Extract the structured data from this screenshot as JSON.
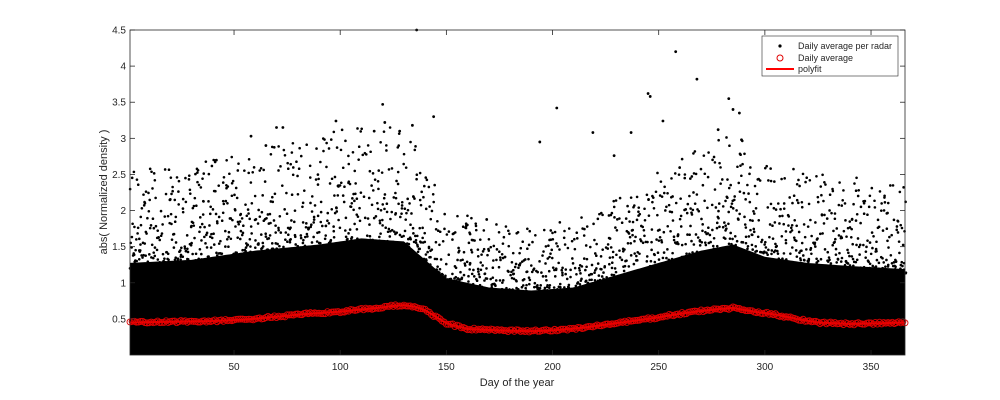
{
  "chart_data": {
    "type": "scatter",
    "title": "",
    "xlabel": "Day of the year",
    "ylabel": "abs( Normalized density )",
    "xlim": [
      1,
      366
    ],
    "ylim": [
      0,
      4.5
    ],
    "x_ticks": [
      50,
      100,
      150,
      200,
      250,
      300,
      350
    ],
    "y_ticks": [
      0.5,
      1,
      1.5,
      2,
      2.5,
      3,
      3.5,
      4,
      4.5
    ],
    "grid": false,
    "legend_position": "top-right",
    "series": [
      {
        "name": "Daily average per radar",
        "kind": "scatter-dots",
        "color": "#000000",
        "note_dense_band_upper_by_day": [
          [
            1,
            1.5
          ],
          [
            30,
            1.55
          ],
          [
            60,
            1.7
          ],
          [
            90,
            1.8
          ],
          [
            110,
            1.9
          ],
          [
            130,
            1.85
          ],
          [
            150,
            1.25
          ],
          [
            170,
            1.1
          ],
          [
            190,
            1.05
          ],
          [
            210,
            1.1
          ],
          [
            230,
            1.3
          ],
          [
            250,
            1.5
          ],
          [
            270,
            1.7
          ],
          [
            285,
            1.8
          ],
          [
            300,
            1.6
          ],
          [
            320,
            1.5
          ],
          [
            340,
            1.45
          ],
          [
            366,
            1.4
          ]
        ],
        "notable_points": [
          [
            136,
            4.5
          ],
          [
            258,
            4.2
          ],
          [
            268,
            3.82
          ],
          [
            245,
            3.62
          ],
          [
            246,
            3.58
          ],
          [
            283,
            3.55
          ],
          [
            120,
            3.47
          ],
          [
            202,
            3.42
          ],
          [
            285,
            3.4
          ],
          [
            288,
            3.35
          ],
          [
            144,
            3.3
          ],
          [
            98,
            3.24
          ],
          [
            252,
            3.24
          ],
          [
            121,
            3.22
          ],
          [
            134,
            3.18
          ],
          [
            70,
            3.15
          ],
          [
            73,
            3.15
          ],
          [
            116,
            3.1
          ],
          [
            128,
            3.1
          ],
          [
            219,
            3.08
          ],
          [
            58,
            3.03
          ],
          [
            237,
            3.08
          ],
          [
            278,
            3.12
          ],
          [
            289,
            2.98
          ],
          [
            194,
            2.95
          ],
          [
            229,
            2.76
          ],
          [
            65,
            2.9
          ]
        ]
      },
      {
        "name": "Daily average",
        "kind": "open-circles",
        "color": "#e00000",
        "x": [
          1,
          20,
          40,
          55,
          70,
          85,
          100,
          110,
          120,
          125,
          130,
          135,
          140,
          150,
          160,
          175,
          190,
          200,
          215,
          230,
          245,
          260,
          270,
          280,
          285,
          295,
          305,
          315,
          325,
          340,
          355,
          366
        ],
        "y": [
          0.45,
          0.46,
          0.47,
          0.49,
          0.53,
          0.57,
          0.6,
          0.63,
          0.66,
          0.68,
          0.69,
          0.67,
          0.62,
          0.44,
          0.36,
          0.34,
          0.33,
          0.34,
          0.38,
          0.44,
          0.5,
          0.57,
          0.61,
          0.64,
          0.65,
          0.6,
          0.56,
          0.5,
          0.45,
          0.43,
          0.44,
          0.45
        ]
      },
      {
        "name": "polyfit",
        "kind": "line",
        "color": "#ff0000"
      }
    ]
  }
}
